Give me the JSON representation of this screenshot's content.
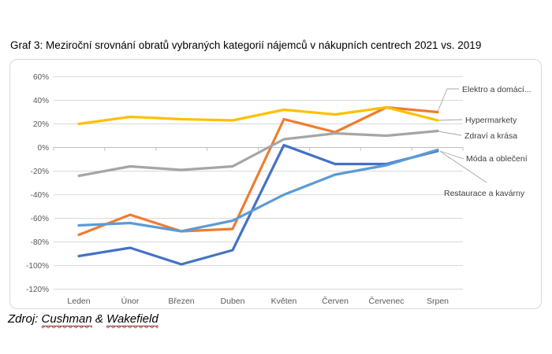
{
  "page": {
    "title": "Graf 3: Meziroční srovnání obratů vybraných kategorií nájemců v nákupních centrech 2021 vs. 2019",
    "source_prefix": "Zdroj: ",
    "source_word1": "Cushman",
    "source_amp": "&",
    "source_word2": "Wakefield"
  },
  "chart_data": {
    "type": "line",
    "title": "",
    "categories": [
      "Leden",
      "Únor",
      "Březen",
      "Duben",
      "Květen",
      "Červen",
      "Červenec",
      "Srpen"
    ],
    "y_ticks": [
      60,
      40,
      20,
      0,
      -20,
      -40,
      -60,
      -80,
      -100,
      -120
    ],
    "ylim": [
      -120,
      60
    ],
    "y_unit": "%",
    "grid": "horizontal",
    "legend_position": "right-callouts",
    "colors": {
      "blue": "#4472C4",
      "orange": "#ED7D31",
      "gray": "#A5A5A5",
      "yellow": "#FFC000",
      "light_blue": "#5B9BD5",
      "gridline": "#D9D9D9",
      "axis": "#BFBFBF",
      "axis_text": "#595959",
      "label_text": "#404040",
      "leader": "#A6A6A6"
    },
    "series": [
      {
        "name": "Móda a oblečení",
        "color": "#4472C4",
        "values": [
          -92,
          -85,
          -99,
          -87,
          2,
          -14,
          -14,
          -3
        ]
      },
      {
        "name": "Elektro a domácí...",
        "color": "#ED7D31",
        "values": [
          -74,
          -57,
          -71,
          -69,
          24,
          13,
          34,
          30
        ]
      },
      {
        "name": "Zdraví a krása",
        "color": "#A5A5A5",
        "values": [
          -24,
          -16,
          -19,
          -16,
          7,
          12,
          10,
          14
        ]
      },
      {
        "name": "Hypermarkety",
        "color": "#FFC000",
        "values": [
          20,
          26,
          24,
          23,
          32,
          28,
          34,
          23
        ]
      },
      {
        "name": "Restaurace a kavárny",
        "color": "#5B9BD5",
        "values": [
          -66,
          -64,
          -71,
          -62,
          -40,
          -23,
          -15,
          -2
        ]
      }
    ]
  }
}
